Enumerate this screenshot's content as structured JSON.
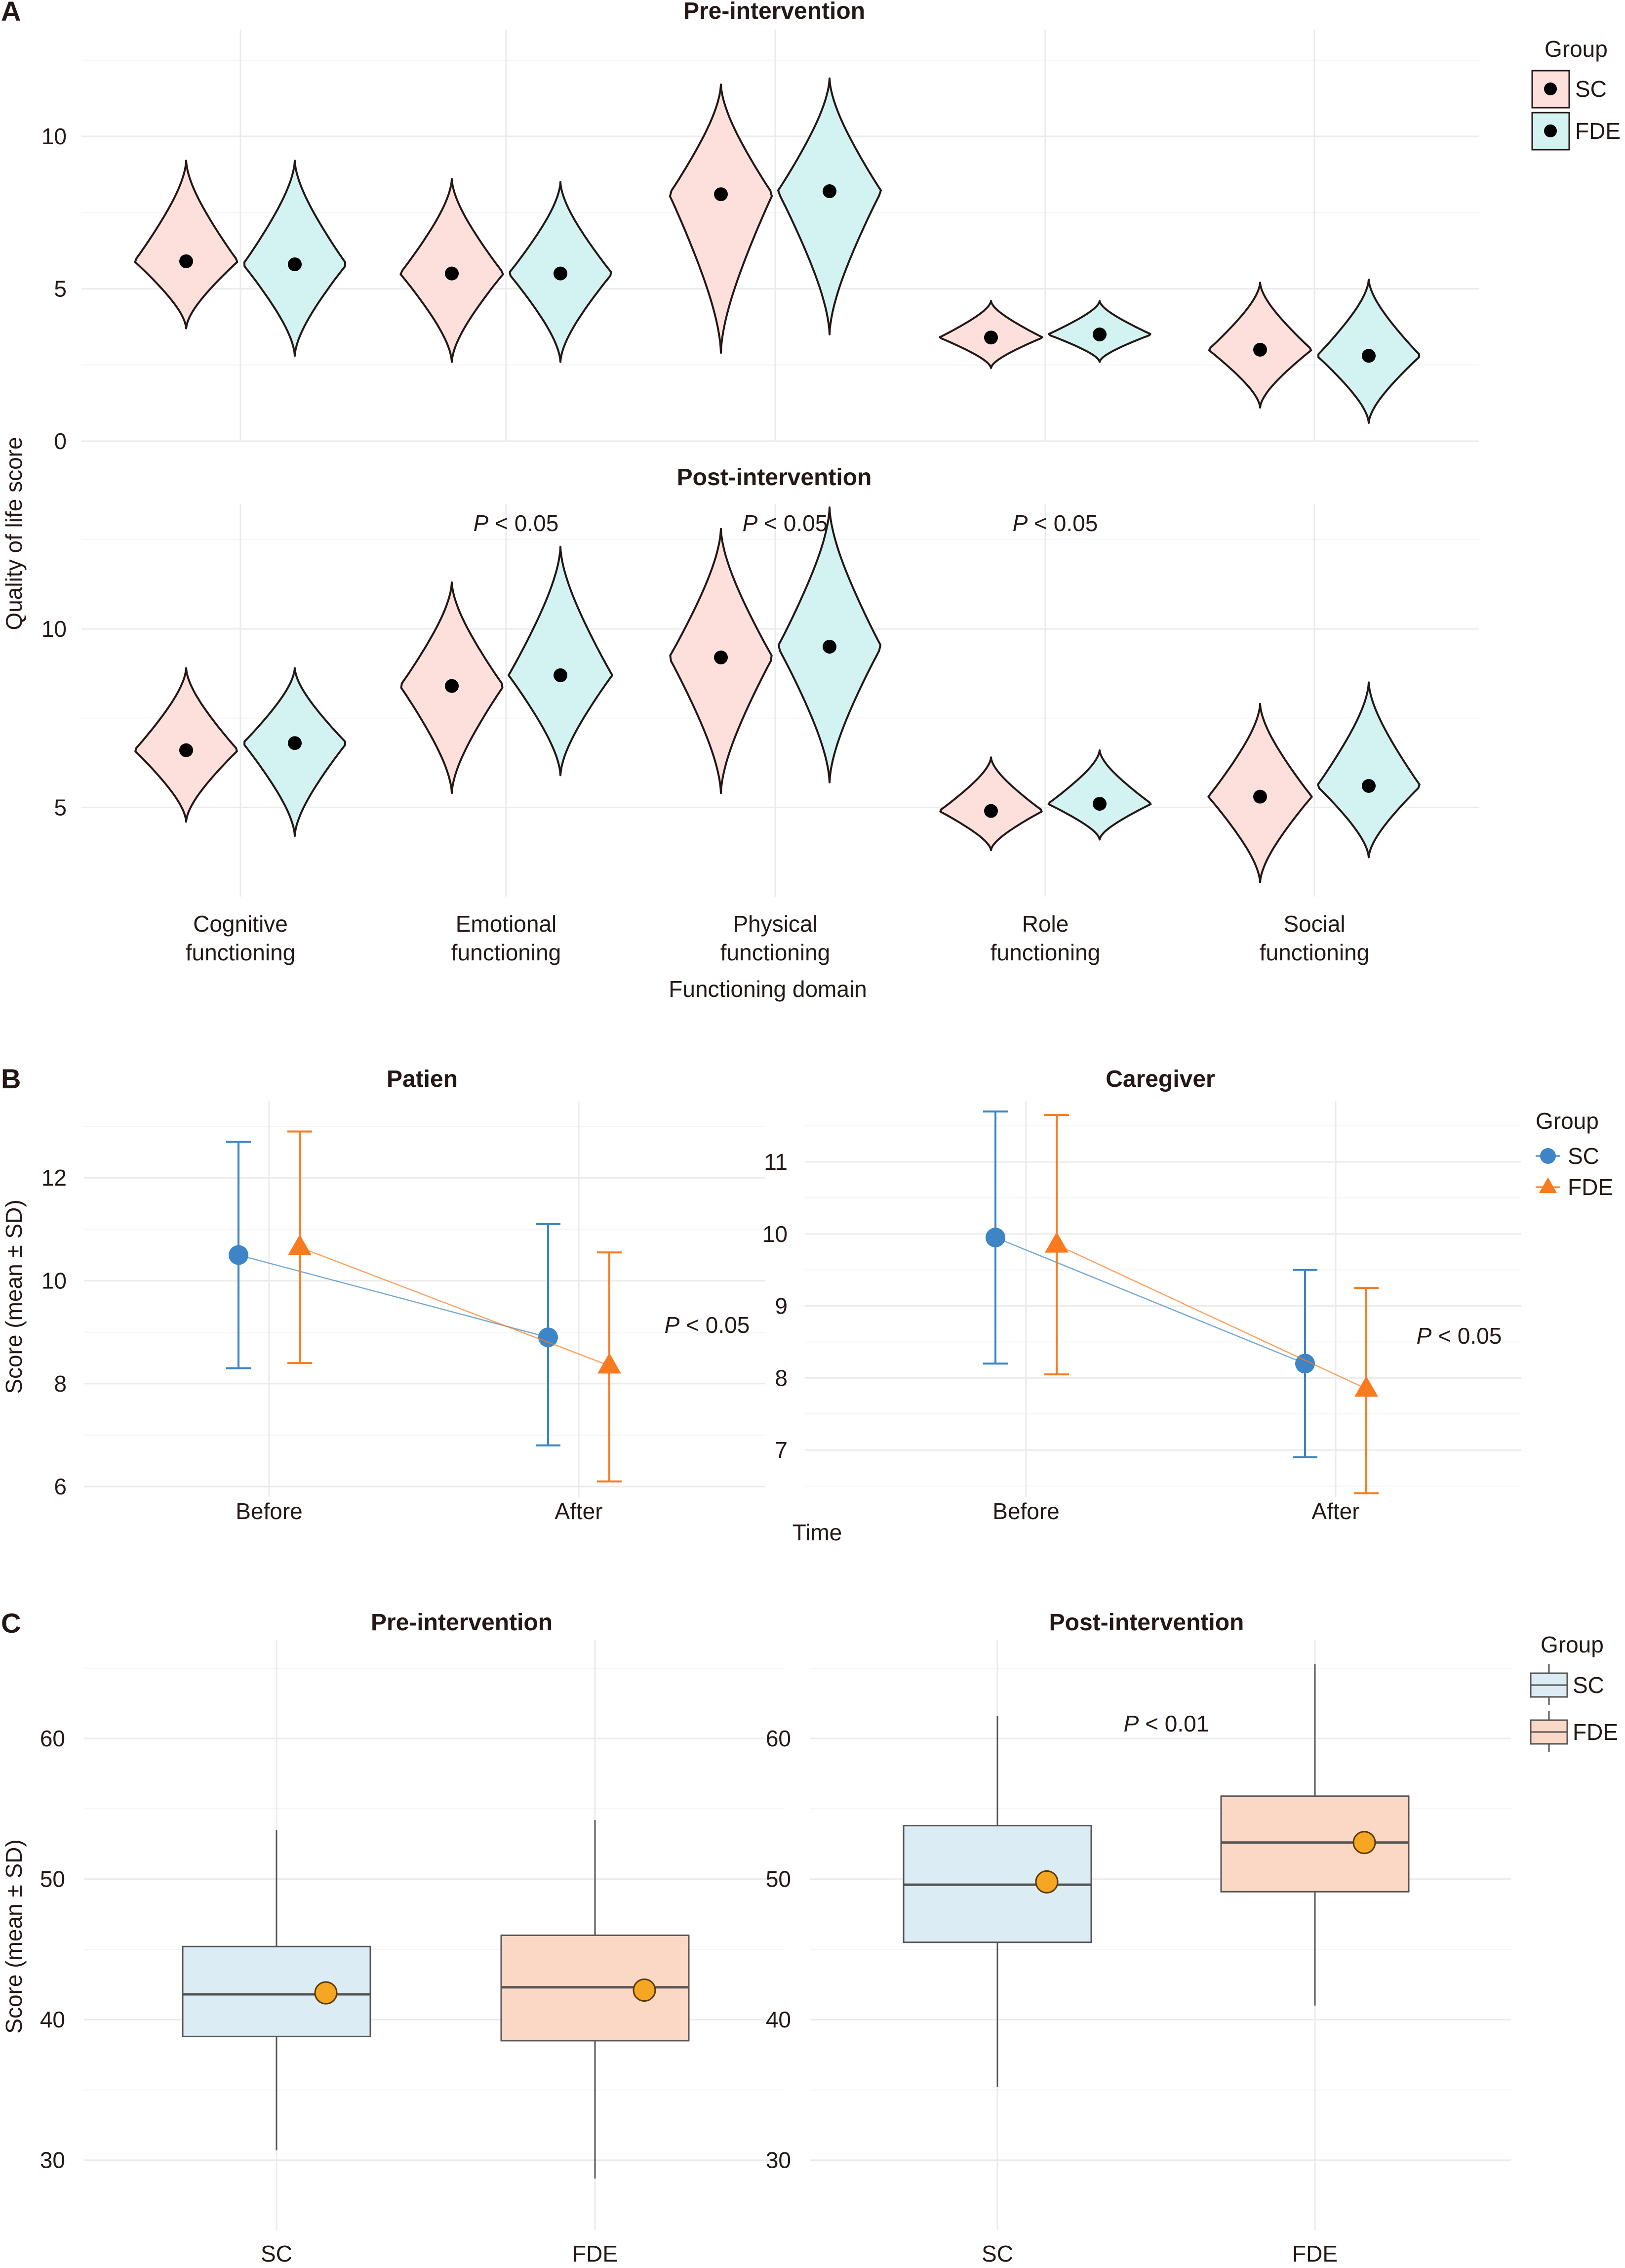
{
  "colors": {
    "sc_violin": "#fde0dc",
    "fde_violin": "#d3f3f2",
    "sc_line": "#3d85c6",
    "fde_line": "#f97a1f",
    "sc_box": "#dcecf5",
    "fde_box": "#fbd8c6",
    "mean_point": "#f5a623"
  },
  "chart_data": [
    {
      "panel": "A",
      "type": "violin",
      "xlabel": "Functioning domain",
      "ylabel": "Quality of life score",
      "categories": [
        "Cognitive functioning",
        "Emotional functioning",
        "Physical functioning",
        "Role functioning",
        "Social functioning"
      ],
      "category_lines": [
        [
          "Cognitive",
          "functioning"
        ],
        [
          "Emotional",
          "functioning"
        ],
        [
          "Physical",
          "functioning"
        ],
        [
          "Role",
          "functioning"
        ],
        [
          "Social",
          "functioning"
        ]
      ],
      "legend": {
        "title": "Group",
        "entries": [
          "SC",
          "FDE"
        ]
      },
      "facets": [
        {
          "title": "Pre-intervention",
          "yticks": [
            0,
            5,
            10
          ],
          "ylim": [
            0,
            13.5
          ],
          "p_values": [],
          "groups": {
            "SC": [
              {
                "mean": 5.9,
                "min": 3.7,
                "max": 9.2
              },
              {
                "mean": 5.5,
                "min": 2.6,
                "max": 8.6
              },
              {
                "mean": 8.1,
                "min": 2.9,
                "max": 11.7
              },
              {
                "mean": 3.4,
                "min": 2.4,
                "max": 4.6
              },
              {
                "mean": 3.0,
                "min": 1.1,
                "max": 5.2
              }
            ],
            "FDE": [
              {
                "mean": 5.8,
                "min": 2.8,
                "max": 9.2
              },
              {
                "mean": 5.5,
                "min": 2.6,
                "max": 8.5
              },
              {
                "mean": 8.2,
                "min": 3.5,
                "max": 11.9
              },
              {
                "mean": 3.5,
                "min": 2.6,
                "max": 4.6
              },
              {
                "mean": 2.8,
                "min": 0.6,
                "max": 5.3
              }
            ]
          }
        },
        {
          "title": "Post-intervention",
          "yticks": [
            5,
            10
          ],
          "ylim": [
            2.5,
            13.5
          ],
          "p_values": [
            null,
            "P < 0.05",
            "P < 0.05",
            "P < 0.05",
            null
          ],
          "groups": {
            "SC": [
              {
                "mean": 6.6,
                "min": 4.6,
                "max": 8.9
              },
              {
                "mean": 8.4,
                "min": 5.4,
                "max": 11.3
              },
              {
                "mean": 9.2,
                "min": 5.4,
                "max": 12.8
              },
              {
                "mean": 4.9,
                "min": 3.8,
                "max": 6.4
              },
              {
                "mean": 5.3,
                "min": 2.9,
                "max": 7.9
              }
            ],
            "FDE": [
              {
                "mean": 6.8,
                "min": 4.2,
                "max": 8.9
              },
              {
                "mean": 8.7,
                "min": 5.9,
                "max": 12.3
              },
              {
                "mean": 9.5,
                "min": 5.7,
                "max": 13.4
              },
              {
                "mean": 5.1,
                "min": 4.1,
                "max": 6.6
              },
              {
                "mean": 5.6,
                "min": 3.6,
                "max": 8.5
              }
            ]
          }
        }
      ]
    },
    {
      "panel": "B",
      "type": "line",
      "xlabel": "Time",
      "ylabel": "Score (mean ± SD)",
      "categories": [
        "Before",
        "After"
      ],
      "legend": {
        "title": "Group",
        "entries": [
          "SC",
          "FDE"
        ]
      },
      "facets": [
        {
          "title": "Patien",
          "yticks": [
            6,
            8,
            10,
            12
          ],
          "ylim": [
            5.8,
            13.5
          ],
          "p_value": "P < 0.05",
          "series": [
            {
              "name": "SC",
              "mean": [
                10.5,
                8.9
              ],
              "lower": [
                8.3,
                6.8
              ],
              "upper": [
                12.7,
                11.1
              ]
            },
            {
              "name": "FDE",
              "mean": [
                10.65,
                8.35
              ],
              "lower": [
                8.4,
                6.1
              ],
              "upper": [
                12.9,
                10.55
              ]
            }
          ]
        },
        {
          "title": "Caregiver",
          "yticks": [
            7,
            8,
            9,
            10,
            11
          ],
          "ylim": [
            6.35,
            11.85
          ],
          "p_value": "P < 0.05",
          "series": [
            {
              "name": "SC",
              "mean": [
                9.95,
                8.2
              ],
              "lower": [
                8.2,
                6.9
              ],
              "upper": [
                11.7,
                9.5
              ]
            },
            {
              "name": "FDE",
              "mean": [
                9.85,
                7.85
              ],
              "lower": [
                8.05,
                6.4
              ],
              "upper": [
                11.65,
                9.25
              ]
            }
          ]
        }
      ]
    },
    {
      "panel": "C",
      "type": "box",
      "xlabel": "",
      "ylabel": "Score (mean ± SD)",
      "categories": [
        "SC",
        "FDE"
      ],
      "legend": {
        "title": "Group",
        "entries": [
          "SC",
          "FDE"
        ]
      },
      "facets": [
        {
          "title": "Pre-intervention",
          "yticks": [
            30,
            40,
            50,
            60
          ],
          "ylim": [
            25,
            67
          ],
          "p_value": null,
          "boxes": [
            {
              "name": "SC",
              "min": 30.7,
              "q1": 38.8,
              "median": 41.8,
              "q3": 45.2,
              "max": 53.5,
              "mean": 41.9
            },
            {
              "name": "FDE",
              "min": 28.7,
              "q1": 38.5,
              "median": 42.3,
              "q3": 46.0,
              "max": 54.2,
              "mean": 42.1
            }
          ]
        },
        {
          "title": "Post-intervention",
          "yticks": [
            30,
            40,
            50,
            60
          ],
          "ylim": [
            25,
            67
          ],
          "p_value": "P < 0.01",
          "boxes": [
            {
              "name": "SC",
              "min": 35.2,
              "q1": 45.5,
              "median": 49.6,
              "q3": 53.8,
              "max": 61.6,
              "mean": 49.8
            },
            {
              "name": "FDE",
              "min": 41.0,
              "q1": 49.1,
              "median": 52.6,
              "q3": 55.9,
              "max": 65.3,
              "mean": 52.6
            }
          ]
        }
      ]
    }
  ]
}
